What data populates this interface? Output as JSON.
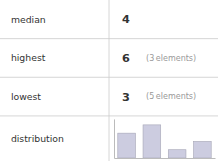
{
  "chart_data": {
    "type": "bar",
    "categories": [
      null,
      null,
      null,
      null
    ],
    "values": [
      3,
      4,
      1,
      2
    ],
    "color": "#cccce0",
    "ylim": [
      0,
      4.72
    ],
    "yticks": [],
    "tick_labels": false,
    "grid": false,
    "table": [
      {
        "label": "median",
        "value": 4
      },
      {
        "label": "highest",
        "value": 6,
        "note": "(3 elements)"
      },
      {
        "label": "lowest",
        "value": 3,
        "note": "(5 elements)"
      },
      {
        "label": "distribution"
      }
    ]
  }
}
